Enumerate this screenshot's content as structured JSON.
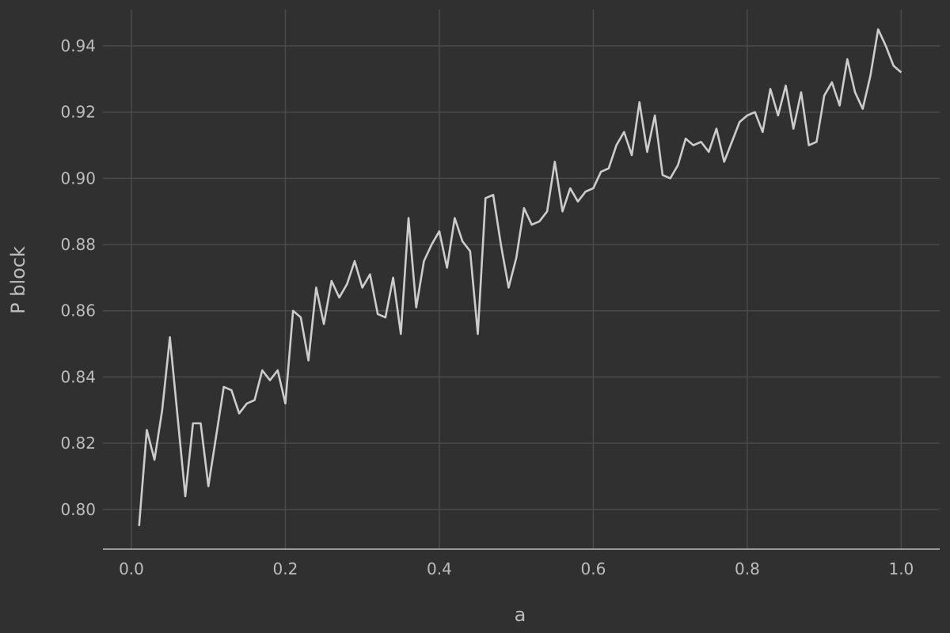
{
  "chart_data": {
    "type": "line",
    "title": "",
    "xlabel": "a",
    "ylabel": "P block",
    "xlim": [
      -0.037,
      1.05
    ],
    "ylim": [
      0.788,
      0.951
    ],
    "x_ticks": [
      0.0,
      0.2,
      0.4,
      0.6,
      0.8,
      1.0
    ],
    "x_tick_labels": [
      "0.0",
      "0.2",
      "0.4",
      "0.6",
      "0.8",
      "1.0"
    ],
    "y_ticks": [
      0.8,
      0.82,
      0.84,
      0.86,
      0.88,
      0.9,
      0.92,
      0.94
    ],
    "y_tick_labels": [
      "0.80",
      "0.82",
      "0.84",
      "0.86",
      "0.88",
      "0.90",
      "0.92",
      "0.94"
    ],
    "grid": true,
    "legend": "none",
    "colors": {
      "background": "#303030",
      "grid": "#4a4a4a",
      "axis": "#bdbdbd",
      "line": "#cccccc",
      "text": "#bdbdbd"
    },
    "series": [
      {
        "x": [
          0.01,
          0.02,
          0.03,
          0.04,
          0.05,
          0.06,
          0.07,
          0.08,
          0.09,
          0.1,
          0.11,
          0.12,
          0.13,
          0.14,
          0.15,
          0.16,
          0.17,
          0.18,
          0.19,
          0.2,
          0.21,
          0.22,
          0.23,
          0.24,
          0.25,
          0.26,
          0.27,
          0.28,
          0.29,
          0.3,
          0.31,
          0.32,
          0.33,
          0.34,
          0.35,
          0.36,
          0.37,
          0.38,
          0.39,
          0.4,
          0.41,
          0.42,
          0.43,
          0.44,
          0.45,
          0.46,
          0.47,
          0.48,
          0.49,
          0.5,
          0.51,
          0.52,
          0.53,
          0.54,
          0.55,
          0.56,
          0.57,
          0.58,
          0.59,
          0.6,
          0.61,
          0.62,
          0.63,
          0.64,
          0.65,
          0.66,
          0.67,
          0.68,
          0.69,
          0.7,
          0.71,
          0.72,
          0.73,
          0.74,
          0.75,
          0.76,
          0.77,
          0.78,
          0.79,
          0.8,
          0.81,
          0.82,
          0.83,
          0.84,
          0.85,
          0.86,
          0.87,
          0.88,
          0.89,
          0.9,
          0.91,
          0.92,
          0.93,
          0.94,
          0.95,
          0.96,
          0.97,
          0.98,
          0.99,
          1.0
        ],
        "y": [
          0.795,
          0.824,
          0.815,
          0.83,
          0.852,
          0.828,
          0.804,
          0.826,
          0.826,
          0.807,
          0.822,
          0.837,
          0.836,
          0.829,
          0.832,
          0.833,
          0.842,
          0.839,
          0.842,
          0.832,
          0.86,
          0.858,
          0.845,
          0.867,
          0.856,
          0.869,
          0.864,
          0.868,
          0.875,
          0.867,
          0.871,
          0.859,
          0.858,
          0.87,
          0.853,
          0.888,
          0.861,
          0.875,
          0.88,
          0.884,
          0.873,
          0.888,
          0.881,
          0.878,
          0.853,
          0.894,
          0.895,
          0.88,
          0.867,
          0.876,
          0.891,
          0.886,
          0.887,
          0.89,
          0.905,
          0.89,
          0.897,
          0.893,
          0.896,
          0.897,
          0.902,
          0.903,
          0.91,
          0.914,
          0.907,
          0.923,
          0.908,
          0.919,
          0.901,
          0.9,
          0.904,
          0.912,
          0.91,
          0.911,
          0.908,
          0.915,
          0.905,
          0.911,
          0.917,
          0.919,
          0.92,
          0.914,
          0.927,
          0.919,
          0.928,
          0.915,
          0.926,
          0.91,
          0.911,
          0.925,
          0.929,
          0.922,
          0.936,
          0.926,
          0.921,
          0.931,
          0.945,
          0.94,
          0.934,
          0.932
        ]
      }
    ]
  }
}
